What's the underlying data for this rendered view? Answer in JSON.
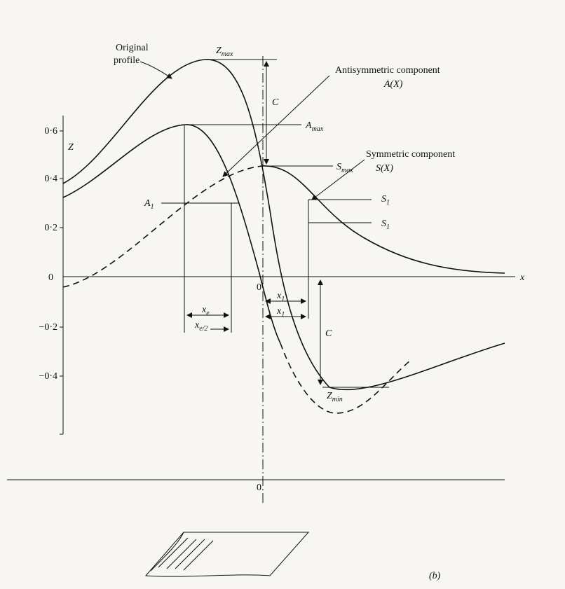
{
  "labels": {
    "original_profile": [
      "Original",
      "profile"
    ],
    "z_max": {
      "main": "Z",
      "sub": "max"
    },
    "antisymmetric": "Antisymmetric component",
    "antisymmetric_fn": "A(X)",
    "c_top": "C",
    "a_max": {
      "main": "A",
      "sub": "max"
    },
    "s_max": {
      "main": "S",
      "sub": "max"
    },
    "symmetric": "Symmetric component",
    "symmetric_fn": "S(X)",
    "z_axis": "Z",
    "a_1": {
      "main": "A",
      "sub": "1"
    },
    "s_1_upper": {
      "main": "S",
      "sub": "1"
    },
    "s_1_lower": {
      "main": "S",
      "sub": "1"
    },
    "x_axis": "x",
    "origin": "0",
    "x_1_upper": {
      "main": "x",
      "sub": "1"
    },
    "x_1_lower": {
      "main": "x",
      "sub": "1"
    },
    "x_e": {
      "main": "x",
      "sub": "e"
    },
    "x_e_half": {
      "main": "x",
      "sub": "e/2"
    },
    "c_bottom": "C",
    "z_min": {
      "main": "Z",
      "sub": "min"
    },
    "lower_origin": "0",
    "panel": "(b)"
  },
  "y_axis_labels": [
    "0·6",
    "0·4",
    "0·2",
    "0",
    "−0·2",
    "−0·4"
  ]
}
